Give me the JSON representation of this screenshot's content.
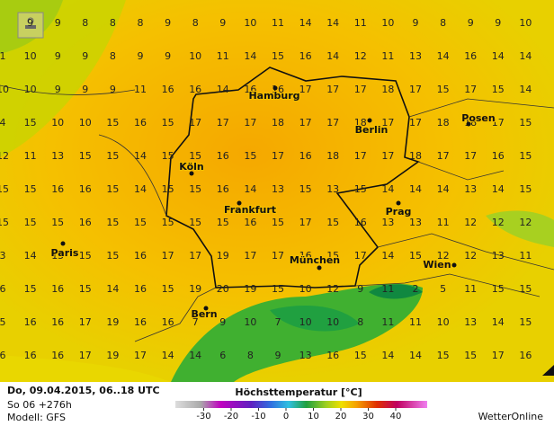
{
  "map": {
    "grid": [
      [
        null,
        9,
        9,
        8,
        8,
        8,
        9,
        8,
        9,
        10,
        11,
        14,
        14,
        11,
        10,
        9,
        8,
        9,
        9,
        10
      ],
      [
        1,
        10,
        9,
        9,
        8,
        9,
        9,
        10,
        11,
        14,
        15,
        16,
        14,
        12,
        11,
        13,
        14,
        16,
        14,
        14
      ],
      [
        10,
        10,
        9,
        9,
        9,
        11,
        16,
        16,
        14,
        16,
        16,
        17,
        17,
        17,
        18,
        17,
        15,
        17,
        15,
        14
      ],
      [
        4,
        15,
        10,
        10,
        15,
        16,
        15,
        17,
        17,
        17,
        18,
        17,
        17,
        18,
        17,
        17,
        18,
        18,
        17,
        15
      ],
      [
        12,
        11,
        13,
        15,
        15,
        14,
        15,
        15,
        16,
        15,
        17,
        16,
        18,
        17,
        17,
        18,
        17,
        17,
        16,
        15
      ],
      [
        15,
        15,
        16,
        16,
        15,
        14,
        15,
        15,
        16,
        14,
        13,
        15,
        13,
        15,
        14,
        14,
        14,
        13,
        14,
        15
      ],
      [
        15,
        15,
        15,
        16,
        15,
        15,
        15,
        15,
        15,
        16,
        15,
        17,
        15,
        16,
        13,
        13,
        11,
        12,
        12,
        12
      ],
      [
        3,
        14,
        15,
        15,
        15,
        16,
        17,
        17,
        19,
        17,
        17,
        16,
        15,
        17,
        14,
        15,
        12,
        12,
        13,
        11
      ],
      [
        6,
        15,
        16,
        15,
        14,
        16,
        15,
        19,
        20,
        19,
        15,
        10,
        12,
        9,
        11,
        2,
        5,
        11,
        15,
        15
      ],
      [
        5,
        16,
        16,
        17,
        19,
        16,
        16,
        7,
        9,
        10,
        7,
        10,
        10,
        8,
        11,
        11,
        10,
        13,
        14,
        15
      ],
      [
        6,
        16,
        16,
        17,
        19,
        17,
        14,
        14,
        6,
        8,
        9,
        13,
        16,
        15,
        14,
        14,
        15,
        15,
        17,
        16
      ]
    ],
    "cities": [
      "Hamburg",
      "Berlin",
      "Posen",
      "Köln",
      "Frankfurt",
      "Prag",
      "Paris",
      "München",
      "Wien",
      "Bern"
    ]
  },
  "footer": {
    "date": "Do, 09.04.2015, 06..18 UTC",
    "run": "So 06 +276h",
    "model": "Modell: GFS",
    "brand": "WetterOnline"
  },
  "legend": {
    "title": "Höchsttemperatur [°C]",
    "ticks": [
      -30,
      -20,
      -10,
      0,
      10,
      20,
      30,
      40
    ]
  }
}
